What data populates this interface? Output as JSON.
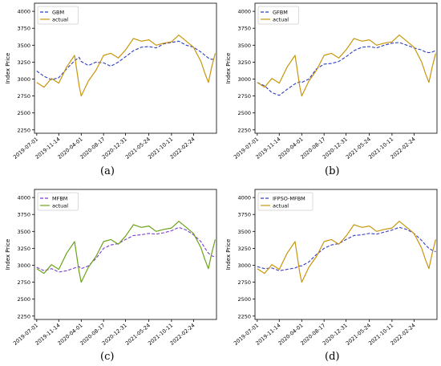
{
  "figure": {
    "panels": [
      {
        "caption": "(a)",
        "chart": {
          "type": "line",
          "ylabel": "Index Price",
          "xlabel": "",
          "ylim": [
            2200,
            4120
          ],
          "yticks": [
            2250,
            2500,
            2750,
            3000,
            3250,
            3500,
            3750,
            4000
          ],
          "xticks": [
            "2019-07-01",
            "2019-11-14",
            "2020-04-01",
            "2020-08-17",
            "2020-12-31",
            "2021-05-24",
            "2021-10-11",
            "2022-02-24"
          ],
          "x_dates": [
            "2019-07-01",
            "2019-08-15",
            "2019-09-30",
            "2019-11-14",
            "2020-01-02",
            "2020-02-20",
            "2020-03-19",
            "2020-04-01",
            "2020-05-15",
            "2020-07-01",
            "2020-08-17",
            "2020-10-01",
            "2020-11-16",
            "2020-12-31",
            "2021-02-18",
            "2021-04-08",
            "2021-05-24",
            "2021-07-08",
            "2021-08-24",
            "2021-10-11",
            "2021-11-25",
            "2022-01-10",
            "2022-02-24",
            "2022-04-11",
            "2022-05-06",
            "2022-05-27",
            "2022-06-17",
            "2022-07-08"
          ],
          "series": [
            {
              "name": "GBM",
              "color": "#2f3fbf",
              "dash": "4,2",
              "values": [
                3120,
                3040,
                2990,
                3020,
                3150,
                3270,
                3320,
                3260,
                3200,
                3250,
                3240,
                3190,
                3250,
                3330,
                3420,
                3470,
                3480,
                3460,
                3520,
                3540,
                3560,
                3500,
                3470,
                3400,
                3350,
                3310,
                3290,
                3300
              ]
            },
            {
              "name": "actual",
              "color": "#c8960c",
              "dash": "",
              "values": [
                2950,
                2880,
                3010,
                2940,
                3180,
                3350,
                2900,
                2750,
                2970,
                3130,
                3350,
                3380,
                3310,
                3430,
                3600,
                3560,
                3580,
                3500,
                3530,
                3550,
                3650,
                3560,
                3470,
                3260,
                3080,
                2950,
                3180,
                3380
              ]
            }
          ]
        }
      },
      {
        "caption": "(b)",
        "chart": {
          "type": "line",
          "ylabel": "Index Price",
          "xlabel": "",
          "ylim": [
            2200,
            4120
          ],
          "yticks": [
            2250,
            2500,
            2750,
            3000,
            3250,
            3500,
            3750,
            4000
          ],
          "xticks": [
            "2019-07-01",
            "2019-11-14",
            "2020-04-01",
            "2020-08-17",
            "2020-12-31",
            "2021-05-24",
            "2021-10-11",
            "2022-02-24"
          ],
          "x_dates": [
            "2019-07-01",
            "2019-08-15",
            "2019-09-30",
            "2019-11-14",
            "2020-01-02",
            "2020-02-20",
            "2020-03-19",
            "2020-04-01",
            "2020-05-15",
            "2020-07-01",
            "2020-08-17",
            "2020-10-01",
            "2020-11-16",
            "2020-12-31",
            "2021-02-18",
            "2021-04-08",
            "2021-05-24",
            "2021-07-08",
            "2021-08-24",
            "2021-10-11",
            "2021-11-25",
            "2022-01-10",
            "2022-02-24",
            "2022-04-11",
            "2022-05-06",
            "2022-05-27",
            "2022-06-17",
            "2022-07-08"
          ],
          "series": [
            {
              "name": "GFBM",
              "color": "#2f3fbf",
              "dash": "4,2",
              "values": [
                2950,
                2900,
                2800,
                2760,
                2850,
                2930,
                2960,
                2950,
                3000,
                3150,
                3220,
                3230,
                3260,
                3330,
                3420,
                3470,
                3480,
                3460,
                3500,
                3530,
                3540,
                3500,
                3460,
                3430,
                3400,
                3390,
                3400,
                3420
              ]
            },
            {
              "name": "actual",
              "color": "#c8960c",
              "dash": "",
              "values": [
                2950,
                2880,
                3010,
                2940,
                3180,
                3350,
                2900,
                2750,
                2970,
                3130,
                3350,
                3380,
                3310,
                3430,
                3600,
                3560,
                3580,
                3500,
                3530,
                3550,
                3650,
                3560,
                3470,
                3260,
                3080,
                2950,
                3180,
                3380
              ]
            }
          ]
        }
      },
      {
        "caption": "(c)",
        "chart": {
          "type": "line",
          "ylabel": "Index Price",
          "xlabel": "",
          "ylim": [
            2200,
            4120
          ],
          "yticks": [
            2250,
            2500,
            2750,
            3000,
            3250,
            3500,
            3750,
            4000
          ],
          "xticks": [
            "2019-07-01",
            "2019-11-14",
            "2020-04-01",
            "2020-08-17",
            "2020-12-31",
            "2021-05-24",
            "2021-10-11",
            "2022-02-24"
          ],
          "x_dates": [
            "2019-07-01",
            "2019-08-15",
            "2019-09-30",
            "2019-11-14",
            "2020-01-02",
            "2020-02-20",
            "2020-03-19",
            "2020-04-01",
            "2020-05-15",
            "2020-07-01",
            "2020-08-17",
            "2020-10-01",
            "2020-11-16",
            "2020-12-31",
            "2021-02-18",
            "2021-04-08",
            "2021-05-24",
            "2021-07-08",
            "2021-08-24",
            "2021-10-11",
            "2021-11-25",
            "2022-01-10",
            "2022-02-24",
            "2022-04-11",
            "2022-05-06",
            "2022-05-27",
            "2022-06-17",
            "2022-07-08"
          ],
          "series": [
            {
              "name": "MFBM",
              "color": "#7b3fd0",
              "dash": "4,2",
              "values": [
                2970,
                2920,
                2950,
                2900,
                2920,
                2960,
                2980,
                2950,
                2990,
                3100,
                3250,
                3300,
                3320,
                3380,
                3440,
                3450,
                3470,
                3460,
                3480,
                3510,
                3560,
                3520,
                3450,
                3350,
                3250,
                3180,
                3140,
                3120
              ]
            },
            {
              "name": "actual",
              "color": "#6aa318",
              "dash": "",
              "values": [
                2950,
                2880,
                3010,
                2940,
                3180,
                3350,
                2900,
                2750,
                2970,
                3130,
                3350,
                3380,
                3310,
                3430,
                3600,
                3560,
                3580,
                3500,
                3530,
                3550,
                3650,
                3560,
                3470,
                3260,
                3080,
                2950,
                3180,
                3380
              ]
            }
          ]
        }
      },
      {
        "caption": "(d)",
        "chart": {
          "type": "line",
          "ylabel": "Index Price",
          "xlabel": "",
          "ylim": [
            2200,
            4120
          ],
          "yticks": [
            2250,
            2500,
            2750,
            3000,
            3250,
            3500,
            3750,
            4000
          ],
          "xticks": [
            "2019-07-01",
            "2019-11-14",
            "2020-04-01",
            "2020-08-17",
            "2020-12-31",
            "2021-05-24",
            "2021-10-11",
            "2022-02-24"
          ],
          "x_dates": [
            "2019-07-01",
            "2019-08-15",
            "2019-09-30",
            "2019-11-14",
            "2020-01-02",
            "2020-02-20",
            "2020-03-19",
            "2020-04-01",
            "2020-05-15",
            "2020-07-01",
            "2020-08-17",
            "2020-10-01",
            "2020-11-16",
            "2020-12-31",
            "2021-02-18",
            "2021-04-08",
            "2021-05-24",
            "2021-07-08",
            "2021-08-24",
            "2021-10-11",
            "2021-11-25",
            "2022-01-10",
            "2022-02-24",
            "2022-04-11",
            "2022-05-06",
            "2022-05-27",
            "2022-06-17",
            "2022-07-08"
          ],
          "series": [
            {
              "name": "IFPSO-MFBM",
              "color": "#3a3fc0",
              "dash": "4,2",
              "values": [
                2980,
                2950,
                2960,
                2920,
                2940,
                2960,
                2990,
                2990,
                3050,
                3160,
                3250,
                3300,
                3320,
                3380,
                3440,
                3450,
                3470,
                3460,
                3490,
                3520,
                3560,
                3530,
                3470,
                3370,
                3300,
                3250,
                3220,
                3200
              ]
            },
            {
              "name": "actual",
              "color": "#c8960c",
              "dash": "",
              "values": [
                2950,
                2880,
                3010,
                2940,
                3180,
                3350,
                2900,
                2750,
                2970,
                3130,
                3350,
                3380,
                3310,
                3430,
                3600,
                3560,
                3580,
                3500,
                3530,
                3550,
                3650,
                3560,
                3470,
                3260,
                3080,
                2950,
                3180,
                3380
              ]
            }
          ]
        }
      }
    ]
  }
}
